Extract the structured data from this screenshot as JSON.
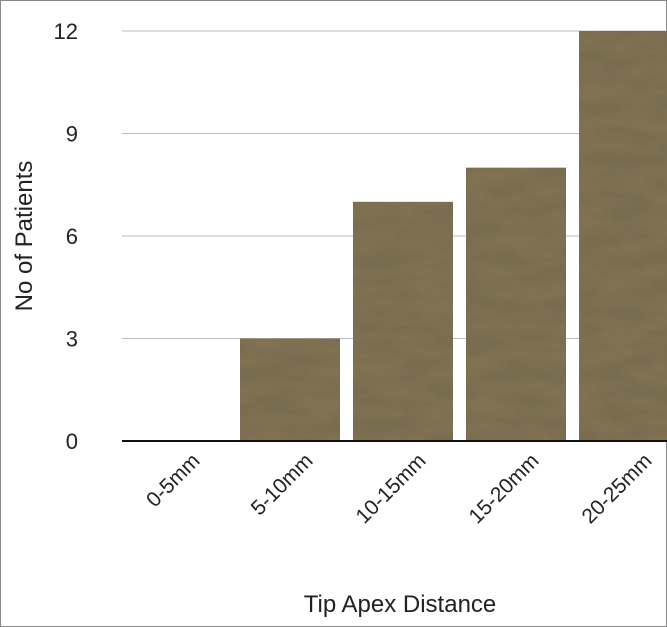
{
  "chart_data": {
    "type": "bar",
    "categories": [
      "0-5mm",
      "5-10mm",
      "10-15mm",
      "15-20mm",
      "20-25mm"
    ],
    "values": [
      0,
      3,
      7,
      8,
      12
    ],
    "color": "#8f8466",
    "ylim": [
      0,
      12
    ],
    "yticks": [
      0,
      3,
      6,
      9,
      12
    ],
    "grid": true,
    "x_label": "Tip Apex Distance",
    "y_label": "No of Patients"
  }
}
